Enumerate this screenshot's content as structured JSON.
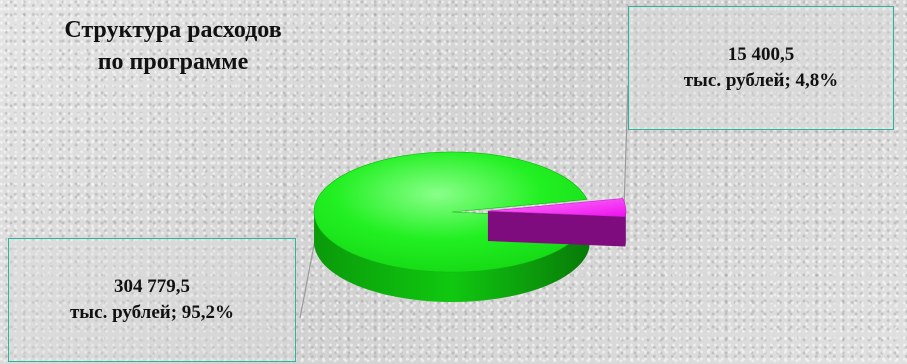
{
  "chart_data": {
    "type": "pie",
    "title_lines": [
      "Структура расходов",
      "по программе"
    ],
    "slices": [
      {
        "value": 304779.5,
        "percent": 95.2,
        "label_lines": [
          "304 779,5",
          "тыс. рублей; 95,2%"
        ],
        "color": "#11ee11"
      },
      {
        "value": 15400.5,
        "percent": 4.8,
        "label_lines": [
          "15 400,5",
          "тыс. рублей; 4,8%"
        ],
        "color": "#ff11ff"
      }
    ],
    "legend": "none",
    "style": "3d-exploded"
  }
}
